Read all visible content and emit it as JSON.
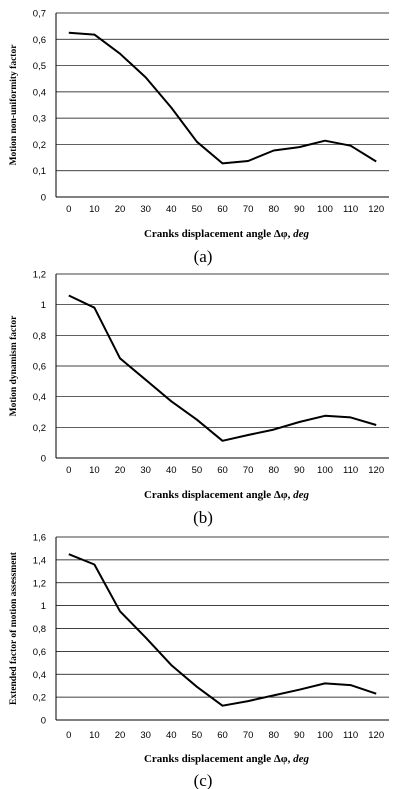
{
  "chart_data": [
    {
      "type": "line",
      "panel_label": "(a)",
      "ylabel": "Motion non-uniformity factor",
      "xlabel": {
        "text": "Cranks displacement angle Δφ, ",
        "unit": "deg"
      },
      "x": [
        0,
        10,
        20,
        30,
        40,
        50,
        60,
        70,
        80,
        90,
        100,
        110,
        120
      ],
      "values": [
        0.625,
        0.618,
        0.545,
        0.455,
        0.34,
        0.21,
        0.128,
        0.137,
        0.177,
        0.19,
        0.214,
        0.195,
        0.135
      ],
      "ylim": [
        0,
        0.7
      ],
      "yticks": [
        "0",
        "0,1",
        "0,2",
        "0,3",
        "0,4",
        "0,5",
        "0,6",
        "0,7"
      ],
      "xticks": [
        "0",
        "10",
        "20",
        "30",
        "40",
        "50",
        "60",
        "70",
        "80",
        "90",
        "100",
        "110",
        "120"
      ],
      "grid": true
    },
    {
      "type": "line",
      "panel_label": "(b)",
      "ylabel": "Motion dynamism factor",
      "xlabel": {
        "text": "Cranks displacement angle Δφ, ",
        "unit": "deg"
      },
      "x": [
        0,
        10,
        20,
        30,
        40,
        50,
        60,
        70,
        80,
        90,
        100,
        110,
        120
      ],
      "values": [
        1.06,
        0.98,
        0.65,
        0.51,
        0.37,
        0.25,
        0.112,
        0.15,
        0.185,
        0.235,
        0.275,
        0.265,
        0.215
      ],
      "ylim": [
        0,
        1.2
      ],
      "yticks": [
        "0",
        "0,2",
        "0,4",
        "0,6",
        "0,8",
        "1",
        "1,2"
      ],
      "xticks": [
        "0",
        "10",
        "20",
        "30",
        "40",
        "50",
        "60",
        "70",
        "80",
        "90",
        "100",
        "110",
        "120"
      ],
      "grid": true
    },
    {
      "type": "line",
      "panel_label": "(c)",
      "ylabel": "Extended factor of motion assessment",
      "xlabel": {
        "text": "Cranks displacement angle Δφ, ",
        "unit": "deg"
      },
      "x": [
        0,
        10,
        20,
        30,
        40,
        50,
        60,
        70,
        80,
        90,
        100,
        110,
        120
      ],
      "values": [
        1.45,
        1.36,
        0.95,
        0.72,
        0.48,
        0.29,
        0.125,
        0.165,
        0.215,
        0.265,
        0.32,
        0.305,
        0.23
      ],
      "ylim": [
        0,
        1.6
      ],
      "yticks": [
        "0",
        "0,2",
        "0,4",
        "0,6",
        "0,8",
        "1",
        "1,2",
        "1,4",
        "1,6"
      ],
      "xticks": [
        "0",
        "10",
        "20",
        "30",
        "40",
        "50",
        "60",
        "70",
        "80",
        "90",
        "100",
        "110",
        "120"
      ],
      "grid": true
    }
  ]
}
